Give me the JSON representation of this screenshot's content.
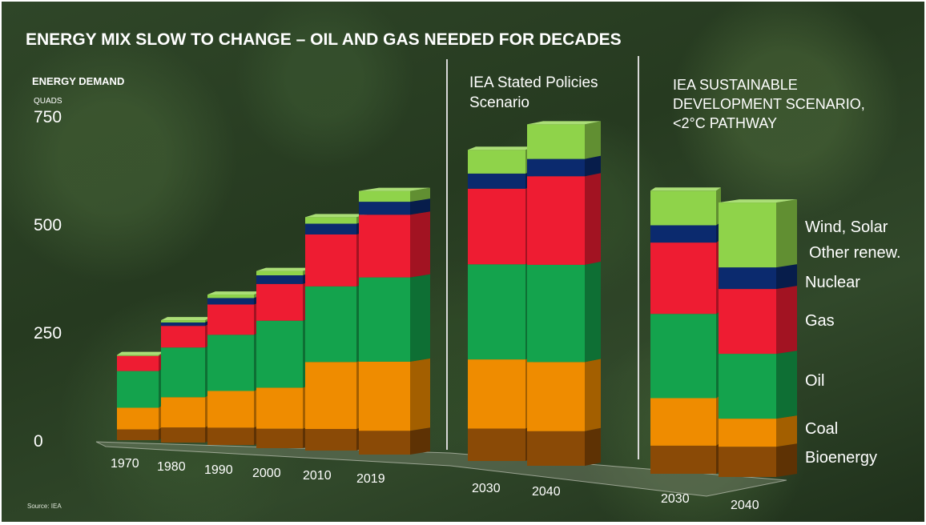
{
  "chart_data": {
    "type": "bar",
    "stacked": true,
    "title": "ENERGY MIX SLOW TO CHANGE – OIL AND GAS  NEEDED FOR DECADES",
    "ylabel": "ENERGY DEMAND",
    "yunit": "QUADS",
    "ylim": [
      0,
      750
    ],
    "yticks": [
      "750",
      "500",
      "250",
      "0"
    ],
    "ytick_values": [
      750,
      500,
      250,
      0
    ],
    "source": "Source: IEA",
    "sections": [
      {
        "label": "",
        "categories": [
          "1970",
          "1980",
          "1990",
          "2000",
          "2010",
          "2019"
        ]
      },
      {
        "label": "IEA Stated Policies Scenario",
        "categories": [
          "2030",
          "2040"
        ]
      },
      {
        "label": "IEA SUSTAINABLE DEVELOPMENT SCENARIO, <2°C PATHWAY",
        "categories": [
          "2030",
          "2040"
        ]
      }
    ],
    "categories": [
      "1970",
      "1980",
      "1990",
      "2000",
      "2010",
      "2019",
      "2030",
      "2040",
      "2030",
      "2040"
    ],
    "series": [
      {
        "name": "Bioenergy",
        "color": "#8a4a06",
        "values": [
          25,
          35,
          40,
          45,
          50,
          55,
          75,
          80,
          65,
          70
        ]
      },
      {
        "name": "Coal",
        "color": "#ef8c00",
        "values": [
          50,
          70,
          85,
          95,
          155,
          160,
          160,
          160,
          110,
          65
        ]
      },
      {
        "name": "Oil",
        "color": "#14a34d",
        "values": [
          85,
          115,
          130,
          155,
          175,
          195,
          220,
          225,
          195,
          150
        ]
      },
      {
        "name": "Gas",
        "color": "#ee1c32",
        "values": [
          35,
          50,
          70,
          85,
          120,
          145,
          175,
          205,
          165,
          150
        ]
      },
      {
        "name": "Nuclear",
        "color": "#0b2a6e",
        "values": [
          0,
          8,
          15,
          20,
          25,
          30,
          35,
          40,
          40,
          50
        ]
      },
      {
        "name": "Wind, Solar",
        "color": "#8fd34a",
        "values": [
          2,
          5,
          8,
          10,
          15,
          25,
          55,
          80,
          80,
          150
        ]
      }
    ],
    "legend": [
      "Wind, Solar",
      "Other renew.",
      "Nuclear",
      "Gas",
      "Oil",
      "Coal",
      "Bioenergy"
    ],
    "legend_position": "right",
    "grid": false
  }
}
